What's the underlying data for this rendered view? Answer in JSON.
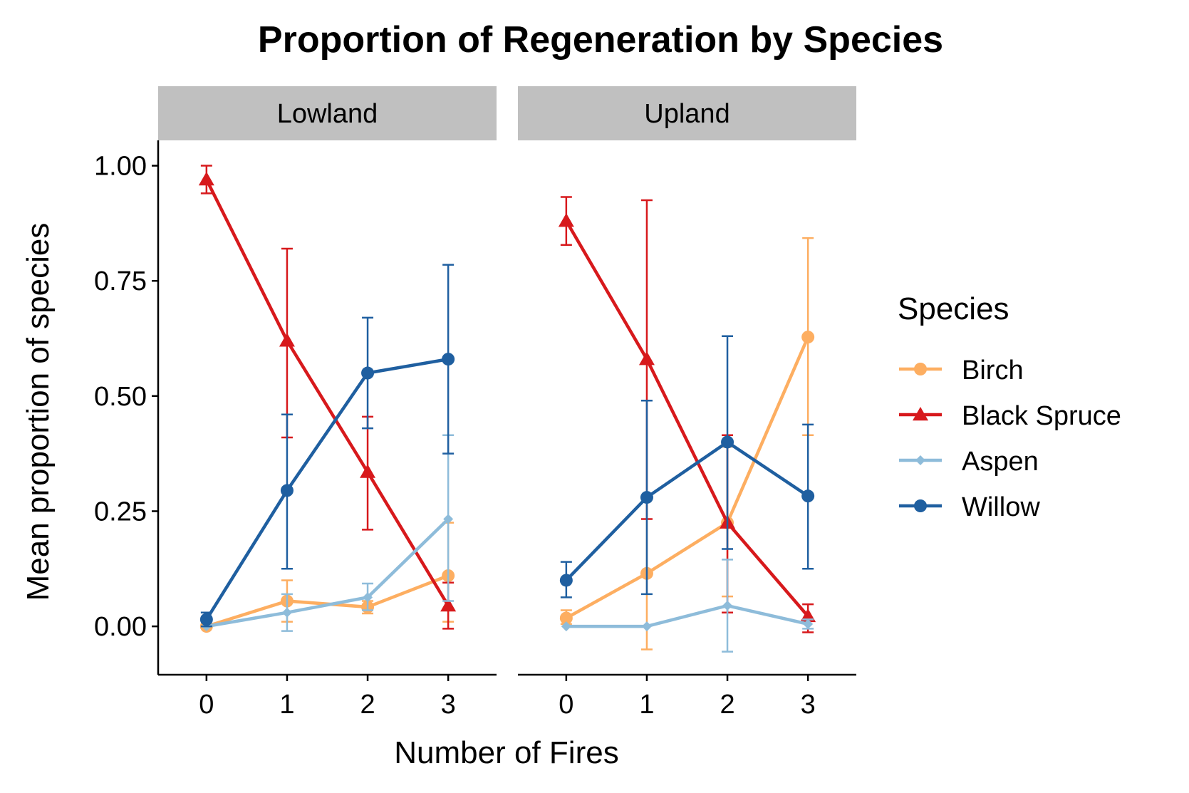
{
  "chart_data": {
    "type": "line",
    "title": "Proportion of Regeneration by Species",
    "xlabel": "Number of Fires",
    "ylabel": "Mean proportion of species",
    "x": [
      0,
      1,
      2,
      3
    ],
    "x_ticks": [
      "0",
      "1",
      "2",
      "3"
    ],
    "y_ticks": [
      "0.00",
      "0.25",
      "0.50",
      "0.75",
      "1.00"
    ],
    "y_tick_values": [
      0,
      0.25,
      0.5,
      0.75,
      1.0
    ],
    "ylim": [
      -0.105,
      1.055
    ],
    "xlim": [
      -0.6,
      3.6
    ],
    "grid": false,
    "legend": {
      "title": "Species",
      "placement": "right"
    },
    "series_styles": [
      {
        "name": "Birch",
        "color": "#FDAE61",
        "marker": "circle"
      },
      {
        "name": "Black Spruce",
        "color": "#D7191C",
        "marker": "triangle"
      },
      {
        "name": "Aspen",
        "color": "#8EBCDA",
        "marker": "diamond"
      },
      {
        "name": "Willow",
        "color": "#1F5FA0",
        "marker": "circle"
      }
    ],
    "panels": [
      {
        "name": "Lowland",
        "series": [
          {
            "name": "Birch",
            "values": [
              0.0,
              0.055,
              0.042,
              0.11
            ],
            "err_low": [
              0.0,
              0.01,
              0.028,
              0.01
            ],
            "err_high": [
              0.0,
              0.1,
              0.055,
              0.225
            ]
          },
          {
            "name": "Black Spruce",
            "values": [
              0.97,
              0.62,
              0.335,
              0.045
            ],
            "err_low": [
              0.94,
              0.41,
              0.21,
              -0.005
            ],
            "err_high": [
              1.0,
              0.82,
              0.455,
              0.095
            ]
          },
          {
            "name": "Aspen",
            "values": [
              0.0,
              0.03,
              0.063,
              0.233
            ],
            "err_low": [
              0.0,
              -0.01,
              0.035,
              0.055
            ],
            "err_high": [
              0.0,
              0.07,
              0.093,
              0.415
            ]
          },
          {
            "name": "Willow",
            "values": [
              0.015,
              0.295,
              0.55,
              0.58
            ],
            "err_low": [
              0.0,
              0.125,
              0.43,
              0.375
            ],
            "err_high": [
              0.03,
              0.46,
              0.67,
              0.785
            ]
          }
        ]
      },
      {
        "name": "Upland",
        "series": [
          {
            "name": "Birch",
            "values": [
              0.018,
              0.115,
              0.225,
              0.628
            ],
            "err_low": [
              0.005,
              -0.05,
              0.065,
              0.415
            ],
            "err_high": [
              0.035,
              0.278,
              0.39,
              0.843
            ]
          },
          {
            "name": "Black Spruce",
            "values": [
              0.88,
              0.58,
              0.225,
              0.022
            ],
            "err_low": [
              0.828,
              0.233,
              0.03,
              -0.013
            ],
            "err_high": [
              0.932,
              0.925,
              0.415,
              0.048
            ]
          },
          {
            "name": "Aspen",
            "values": [
              0.0,
              0.0,
              0.045,
              0.005
            ],
            "err_low": [
              0.0,
              0.0,
              -0.055,
              -0.005
            ],
            "err_high": [
              0.0,
              0.0,
              0.145,
              0.015
            ]
          },
          {
            "name": "Willow",
            "values": [
              0.1,
              0.28,
              0.4,
              0.283
            ],
            "err_low": [
              0.063,
              0.07,
              0.168,
              0.125
            ],
            "err_high": [
              0.14,
              0.49,
              0.63,
              0.438
            ]
          }
        ]
      }
    ]
  }
}
